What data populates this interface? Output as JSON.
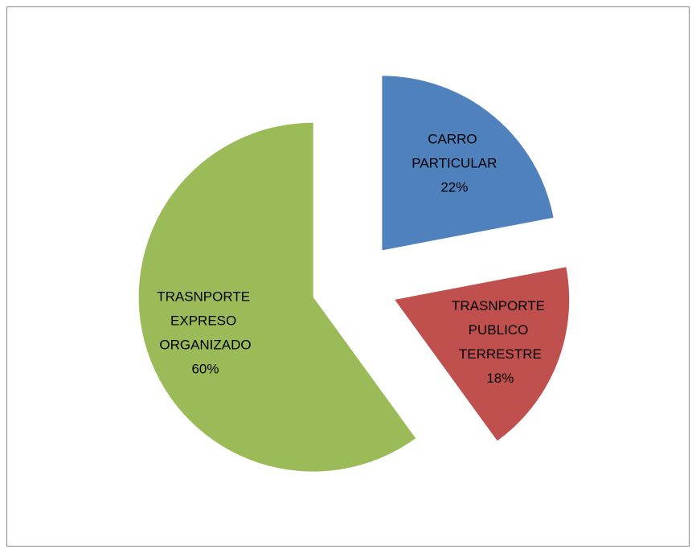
{
  "chart_data": {
    "type": "pie",
    "categories": [
      "CARRO PARTICULAR",
      "TRASNPORTE PUBLICO TERRESTRE",
      "TRASNPORTE EXPRESO ORGANIZADO"
    ],
    "values": [
      22,
      18,
      60
    ],
    "value_labels": [
      "22%",
      "18%",
      "60%"
    ],
    "colors": [
      "#4f81bd",
      "#c0504d",
      "#9bbb59"
    ],
    "exploded": true
  }
}
